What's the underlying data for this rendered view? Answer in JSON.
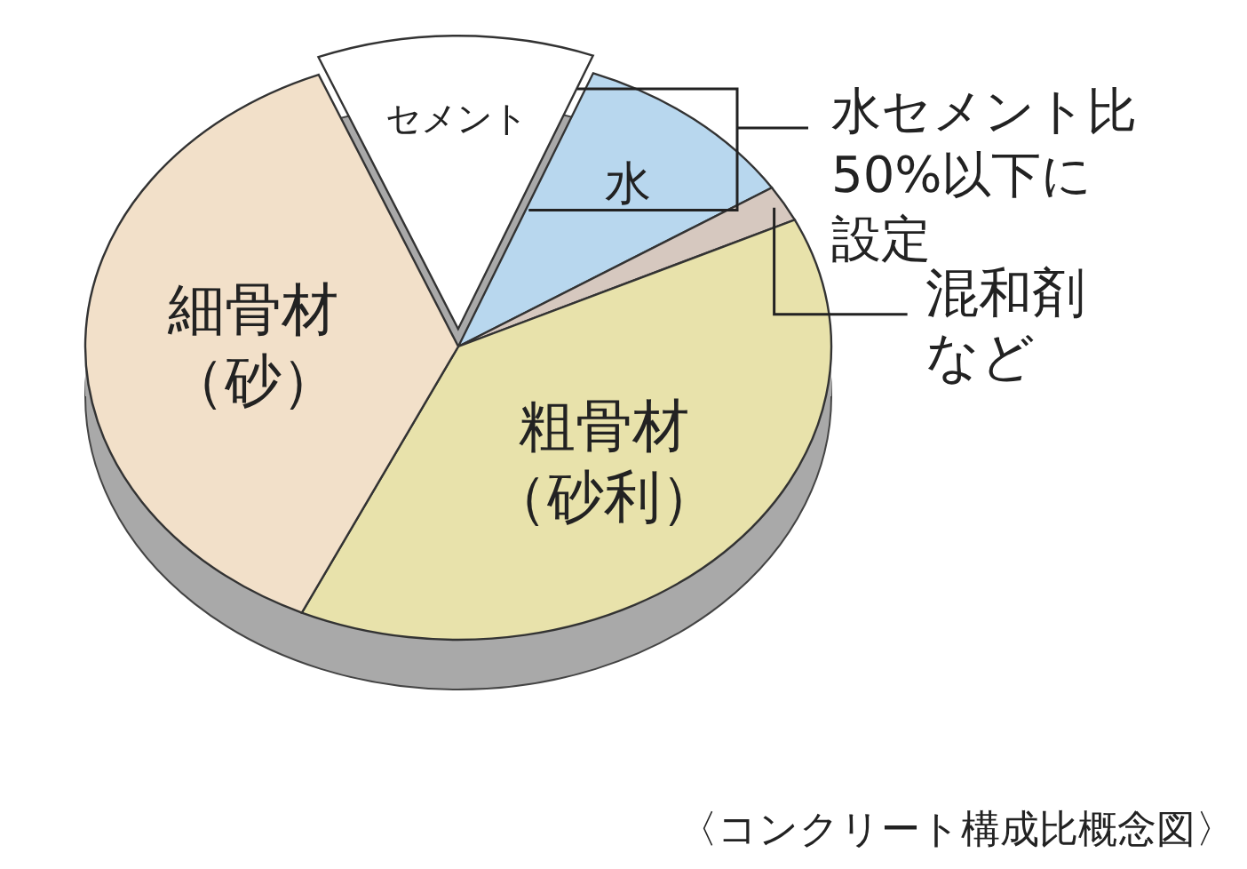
{
  "chart_data": {
    "type": "pie",
    "categories": [
      "セメント",
      "水",
      "混和剤など",
      "粗骨材（砂利）",
      "細骨材（砂）"
    ],
    "values": [
      12,
      10,
      2,
      39,
      37
    ],
    "colors": [
      "#ffffff",
      "#b8d7ee",
      "#d6c8bf",
      "#e8e2ab",
      "#f2e0c9"
    ],
    "annotations": [
      "水セメント比50%以下に設定",
      "〈コンクリート構成比概念図〉"
    ]
  }
}
